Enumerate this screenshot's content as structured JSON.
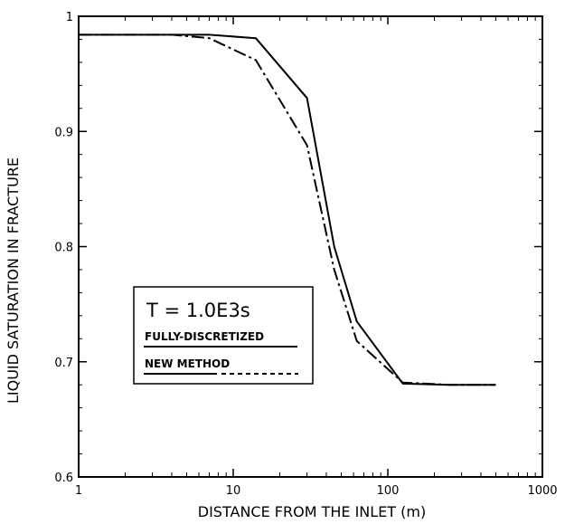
{
  "chart_data": {
    "type": "line",
    "title": "",
    "xlabel": "DISTANCE FROM THE INLET (m)",
    "ylabel": "LIQUID SATURATION IN FRACTURE",
    "xscale": "log",
    "xlim": [
      1,
      1000
    ],
    "ylim": [
      0.6,
      1.0
    ],
    "xticks": [
      "1",
      "10",
      "100",
      "1000"
    ],
    "yticks": [
      "0.6",
      "0.7",
      "0.8",
      "0.9",
      "1"
    ],
    "grid": false,
    "legend": {
      "placement": "lower-left",
      "title": "T = 1.0E3s"
    },
    "series": [
      {
        "name": "FULLY-DISCRETIZED",
        "style": "solid",
        "x": [
          1,
          7,
          14,
          30,
          45,
          63,
          125,
          250,
          500
        ],
        "y": [
          0.984,
          0.984,
          0.981,
          0.929,
          0.8,
          0.735,
          0.681,
          0.68,
          0.68
        ]
      },
      {
        "name": "NEW METHOD",
        "style": "dashed",
        "x": [
          1,
          4,
          7,
          14,
          30,
          45,
          63,
          125,
          250,
          500
        ],
        "y": [
          0.984,
          0.984,
          0.981,
          0.962,
          0.888,
          0.78,
          0.718,
          0.682,
          0.68,
          0.68
        ]
      }
    ]
  }
}
